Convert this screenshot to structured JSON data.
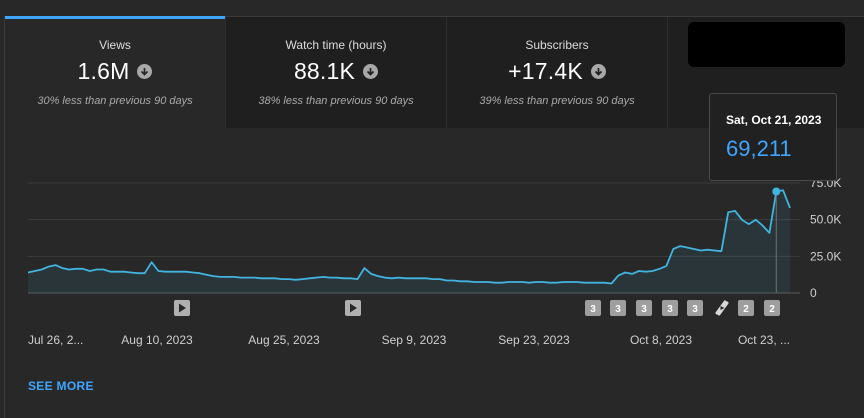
{
  "tabs": [
    {
      "label": "Views",
      "value": "1.6M",
      "compare": "30% less than previous 90 days"
    },
    {
      "label": "Watch time (hours)",
      "value": "88.1K",
      "compare": "38% less than previous 90 days"
    },
    {
      "label": "Subscribers",
      "value": "+17.4K",
      "compare": "39% less than previous 90 days"
    }
  ],
  "tooltip": {
    "date": "Sat, Oct 21, 2023",
    "value": "69,211"
  },
  "see_more": "SEE MORE",
  "colors": {
    "accent": "#3ea6ff",
    "line": "#41b4e0",
    "background": "#282828"
  },
  "chart_data": {
    "type": "area",
    "series": [
      {
        "values": [
          14000,
          15000,
          16000,
          18000,
          19000,
          17000,
          16000,
          16500,
          16500,
          15000,
          16000,
          16000,
          14500,
          14500,
          14500,
          14000,
          13500,
          13500,
          21000,
          15000,
          14500,
          14500,
          14500,
          14500,
          14000,
          13500,
          12500,
          11500,
          11000,
          11000,
          11000,
          10500,
          10500,
          10500,
          10000,
          10000,
          10000,
          9500,
          9500,
          9000,
          9500,
          10000,
          10500,
          11000,
          10500,
          10500,
          10000,
          10000,
          9500,
          17000,
          13000,
          11500,
          10500,
          10000,
          10500,
          10000,
          10000,
          10000,
          10000,
          9500,
          9500,
          8500,
          8500,
          8000,
          8000,
          7500,
          7500,
          7500,
          7000,
          7000,
          7500,
          7500,
          7500,
          7000,
          7500,
          7500,
          7000,
          7000,
          7500,
          7500,
          7500,
          7000,
          7000,
          7000,
          7000,
          6500,
          12000,
          14000,
          13000,
          15000,
          14500,
          15000,
          16500,
          18500,
          30000,
          32000,
          31000,
          30000,
          29000,
          29500,
          29000,
          28500,
          55000,
          56000,
          50000,
          47000,
          50000,
          46000,
          41000,
          69211,
          70000,
          58000
        ]
      }
    ],
    "ylim": [
      0,
      75000
    ],
    "ytick_labels": [
      "0",
      "25.0K",
      "50.0K",
      "75.0K"
    ],
    "xtick_labels": [
      "Jul 26, 2...",
      "Aug 10, 2023",
      "Aug 25, 2023",
      "Sep 9, 2023",
      "Sep 23, 2023",
      "Oct 8, 2023",
      "Oct 23, ..."
    ],
    "highlight": {
      "date": "Sat, Oct 21, 2023",
      "value": 69211
    },
    "markers": [
      {
        "type": "video"
      },
      {
        "type": "video"
      },
      {
        "type": "count",
        "label": "3"
      },
      {
        "type": "count",
        "label": "3"
      },
      {
        "type": "count",
        "label": "3"
      },
      {
        "type": "count",
        "label": "3"
      },
      {
        "type": "count",
        "label": "3"
      },
      {
        "type": "shorts"
      },
      {
        "type": "count",
        "label": "2"
      },
      {
        "type": "count",
        "label": "2"
      }
    ]
  }
}
